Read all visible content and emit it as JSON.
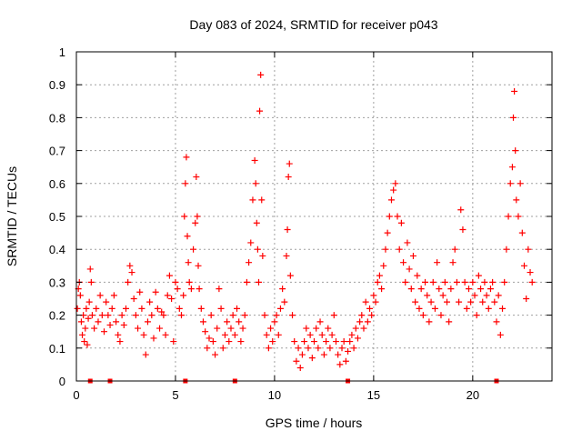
{
  "chart_data": {
    "type": "scatter",
    "title": "Day 083 of 2024, SRMTID for receiver p043",
    "xlabel": "GPS time / hours",
    "ylabel": "SRMTID / TECUs",
    "xlim": [
      0,
      24
    ],
    "ylim": [
      0,
      1
    ],
    "x_ticks": [
      0,
      5,
      10,
      15,
      20
    ],
    "x_tick_labels": [
      "0",
      "5",
      "10",
      "15",
      "20"
    ],
    "y_ticks": [
      0,
      0.1,
      0.2,
      0.3,
      0.4,
      0.5,
      0.6,
      0.7,
      0.8,
      0.9,
      1
    ],
    "y_tick_labels": [
      "0",
      "0.1",
      "0.2",
      "0.3",
      "0.4",
      "0.5",
      "0.6",
      "0.7",
      "0.8",
      "0.9",
      "1"
    ],
    "grid": true,
    "marker": "+",
    "colors": {
      "series": "#ff0000",
      "grid": "#a0a0a0",
      "axis": "#000000"
    },
    "series": [
      {
        "name": "SRMTID",
        "points": [
          [
            0.05,
            0.22
          ],
          [
            0.1,
            0.28
          ],
          [
            0.15,
            0.3
          ],
          [
            0.2,
            0.26
          ],
          [
            0.25,
            0.18
          ],
          [
            0.3,
            0.14
          ],
          [
            0.35,
            0.2
          ],
          [
            0.4,
            0.12
          ],
          [
            0.45,
            0.16
          ],
          [
            0.5,
            0.22
          ],
          [
            0.55,
            0.11
          ],
          [
            0.6,
            0.19
          ],
          [
            0.65,
            0.24
          ],
          [
            0.7,
            0.34
          ],
          [
            0.75,
            0.3
          ],
          [
            0.8,
            0.2
          ],
          [
            0.9,
            0.16
          ],
          [
            1.0,
            0.22
          ],
          [
            1.1,
            0.18
          ],
          [
            1.2,
            0.26
          ],
          [
            1.3,
            0.2
          ],
          [
            1.4,
            0.15
          ],
          [
            1.5,
            0.24
          ],
          [
            1.6,
            0.2
          ],
          [
            1.7,
            0.17
          ],
          [
            1.8,
            0.22
          ],
          [
            1.9,
            0.26
          ],
          [
            2.0,
            0.18
          ],
          [
            2.1,
            0.14
          ],
          [
            2.2,
            0.12
          ],
          [
            2.3,
            0.2
          ],
          [
            2.4,
            0.17
          ],
          [
            2.5,
            0.22
          ],
          [
            2.6,
            0.3
          ],
          [
            2.7,
            0.35
          ],
          [
            2.8,
            0.33
          ],
          [
            2.9,
            0.25
          ],
          [
            3.0,
            0.2
          ],
          [
            3.1,
            0.16
          ],
          [
            3.2,
            0.27
          ],
          [
            3.3,
            0.22
          ],
          [
            3.4,
            0.14
          ],
          [
            3.5,
            0.08
          ],
          [
            3.6,
            0.18
          ],
          [
            3.7,
            0.24
          ],
          [
            3.8,
            0.2
          ],
          [
            3.9,
            0.13
          ],
          [
            4.0,
            0.27
          ],
          [
            4.1,
            0.22
          ],
          [
            4.2,
            0.16
          ],
          [
            4.3,
            0.21
          ],
          [
            4.4,
            0.2
          ],
          [
            4.5,
            0.14
          ],
          [
            4.6,
            0.26
          ],
          [
            4.7,
            0.32
          ],
          [
            4.8,
            0.25
          ],
          [
            4.9,
            0.12
          ],
          [
            5.0,
            0.3
          ],
          [
            5.1,
            0.28
          ],
          [
            5.2,
            0.22
          ],
          [
            5.3,
            0.2
          ],
          [
            5.4,
            0.26
          ],
          [
            5.45,
            0.5
          ],
          [
            5.5,
            0.6
          ],
          [
            5.55,
            0.68
          ],
          [
            5.6,
            0.44
          ],
          [
            5.65,
            0.36
          ],
          [
            5.7,
            0.3
          ],
          [
            5.8,
            0.28
          ],
          [
            5.9,
            0.4
          ],
          [
            6.0,
            0.48
          ],
          [
            6.05,
            0.62
          ],
          [
            6.1,
            0.5
          ],
          [
            6.15,
            0.35
          ],
          [
            6.2,
            0.28
          ],
          [
            6.3,
            0.22
          ],
          [
            6.4,
            0.18
          ],
          [
            6.5,
            0.15
          ],
          [
            6.6,
            0.1
          ],
          [
            6.7,
            0.13
          ],
          [
            6.8,
            0.2
          ],
          [
            6.9,
            0.12
          ],
          [
            7.0,
            0.08
          ],
          [
            7.1,
            0.16
          ],
          [
            7.2,
            0.28
          ],
          [
            7.3,
            0.22
          ],
          [
            7.4,
            0.1
          ],
          [
            7.5,
            0.14
          ],
          [
            7.6,
            0.18
          ],
          [
            7.7,
            0.12
          ],
          [
            7.8,
            0.16
          ],
          [
            7.9,
            0.2
          ],
          [
            8.0,
            0.14
          ],
          [
            8.1,
            0.22
          ],
          [
            8.2,
            0.18
          ],
          [
            8.3,
            0.12
          ],
          [
            8.4,
            0.16
          ],
          [
            8.5,
            0.2
          ],
          [
            8.6,
            0.3
          ],
          [
            8.7,
            0.36
          ],
          [
            8.8,
            0.42
          ],
          [
            8.9,
            0.55
          ],
          [
            9.0,
            0.67
          ],
          [
            9.05,
            0.6
          ],
          [
            9.1,
            0.48
          ],
          [
            9.15,
            0.4
          ],
          [
            9.2,
            0.3
          ],
          [
            9.25,
            0.82
          ],
          [
            9.3,
            0.93
          ],
          [
            9.35,
            0.55
          ],
          [
            9.4,
            0.38
          ],
          [
            9.5,
            0.2
          ],
          [
            9.6,
            0.14
          ],
          [
            9.7,
            0.1
          ],
          [
            9.8,
            0.16
          ],
          [
            9.9,
            0.12
          ],
          [
            10.0,
            0.18
          ],
          [
            10.1,
            0.2
          ],
          [
            10.2,
            0.14
          ],
          [
            10.3,
            0.22
          ],
          [
            10.4,
            0.28
          ],
          [
            10.5,
            0.24
          ],
          [
            10.6,
            0.38
          ],
          [
            10.65,
            0.46
          ],
          [
            10.7,
            0.62
          ],
          [
            10.75,
            0.66
          ],
          [
            10.8,
            0.32
          ],
          [
            10.9,
            0.2
          ],
          [
            11.0,
            0.12
          ],
          [
            11.1,
            0.06
          ],
          [
            11.2,
            0.1
          ],
          [
            11.3,
            0.04
          ],
          [
            11.4,
            0.08
          ],
          [
            11.5,
            0.12
          ],
          [
            11.6,
            0.16
          ],
          [
            11.7,
            0.1
          ],
          [
            11.8,
            0.14
          ],
          [
            11.9,
            0.07
          ],
          [
            12.0,
            0.12
          ],
          [
            12.1,
            0.16
          ],
          [
            12.2,
            0.1
          ],
          [
            12.3,
            0.18
          ],
          [
            12.4,
            0.14
          ],
          [
            12.5,
            0.08
          ],
          [
            12.6,
            0.12
          ],
          [
            12.7,
            0.16
          ],
          [
            12.8,
            0.1
          ],
          [
            12.9,
            0.14
          ],
          [
            13.0,
            0.2
          ],
          [
            13.1,
            0.12
          ],
          [
            13.2,
            0.08
          ],
          [
            13.3,
            0.05
          ],
          [
            13.4,
            0.1
          ],
          [
            13.5,
            0.12
          ],
          [
            13.6,
            0.06
          ],
          [
            13.7,
            0.09
          ],
          [
            13.8,
            0.12
          ],
          [
            13.9,
            0.14
          ],
          [
            14.0,
            0.1
          ],
          [
            14.1,
            0.16
          ],
          [
            14.2,
            0.13
          ],
          [
            14.3,
            0.18
          ],
          [
            14.4,
            0.2
          ],
          [
            14.5,
            0.16
          ],
          [
            14.6,
            0.24
          ],
          [
            14.7,
            0.18
          ],
          [
            14.8,
            0.22
          ],
          [
            14.9,
            0.2
          ],
          [
            15.0,
            0.26
          ],
          [
            15.1,
            0.24
          ],
          [
            15.2,
            0.3
          ],
          [
            15.3,
            0.32
          ],
          [
            15.4,
            0.28
          ],
          [
            15.5,
            0.35
          ],
          [
            15.6,
            0.4
          ],
          [
            15.7,
            0.45
          ],
          [
            15.8,
            0.5
          ],
          [
            15.9,
            0.55
          ],
          [
            16.0,
            0.58
          ],
          [
            16.1,
            0.6
          ],
          [
            16.2,
            0.5
          ],
          [
            16.3,
            0.4
          ],
          [
            16.4,
            0.48
          ],
          [
            16.5,
            0.36
          ],
          [
            16.6,
            0.3
          ],
          [
            16.7,
            0.42
          ],
          [
            16.8,
            0.34
          ],
          [
            16.9,
            0.28
          ],
          [
            17.0,
            0.38
          ],
          [
            17.1,
            0.24
          ],
          [
            17.2,
            0.32
          ],
          [
            17.3,
            0.22
          ],
          [
            17.4,
            0.28
          ],
          [
            17.5,
            0.2
          ],
          [
            17.6,
            0.3
          ],
          [
            17.7,
            0.26
          ],
          [
            17.8,
            0.18
          ],
          [
            17.9,
            0.24
          ],
          [
            18.0,
            0.3
          ],
          [
            18.1,
            0.22
          ],
          [
            18.2,
            0.36
          ],
          [
            18.3,
            0.28
          ],
          [
            18.4,
            0.2
          ],
          [
            18.5,
            0.26
          ],
          [
            18.6,
            0.3
          ],
          [
            18.7,
            0.24
          ],
          [
            18.8,
            0.18
          ],
          [
            18.9,
            0.28
          ],
          [
            19.0,
            0.36
          ],
          [
            19.1,
            0.4
          ],
          [
            19.2,
            0.3
          ],
          [
            19.3,
            0.24
          ],
          [
            19.4,
            0.52
          ],
          [
            19.5,
            0.46
          ],
          [
            19.6,
            0.3
          ],
          [
            19.7,
            0.22
          ],
          [
            19.8,
            0.28
          ],
          [
            19.9,
            0.24
          ],
          [
            20.0,
            0.3
          ],
          [
            20.1,
            0.26
          ],
          [
            20.2,
            0.2
          ],
          [
            20.3,
            0.32
          ],
          [
            20.4,
            0.28
          ],
          [
            20.5,
            0.24
          ],
          [
            20.6,
            0.3
          ],
          [
            20.7,
            0.26
          ],
          [
            20.8,
            0.22
          ],
          [
            20.9,
            0.28
          ],
          [
            21.0,
            0.3
          ],
          [
            21.1,
            0.24
          ],
          [
            21.2,
            0.18
          ],
          [
            21.3,
            0.26
          ],
          [
            21.4,
            0.14
          ],
          [
            21.5,
            0.22
          ],
          [
            21.6,
            0.3
          ],
          [
            21.7,
            0.4
          ],
          [
            21.8,
            0.5
          ],
          [
            21.9,
            0.6
          ],
          [
            22.0,
            0.65
          ],
          [
            22.05,
            0.8
          ],
          [
            22.1,
            0.88
          ],
          [
            22.15,
            0.7
          ],
          [
            22.2,
            0.55
          ],
          [
            22.3,
            0.5
          ],
          [
            22.4,
            0.6
          ],
          [
            22.5,
            0.45
          ],
          [
            22.6,
            0.35
          ],
          [
            22.7,
            0.25
          ],
          [
            22.8,
            0.4
          ],
          [
            22.9,
            0.33
          ],
          [
            23.0,
            0.3
          ]
        ]
      }
    ],
    "axis_markers": [
      0.7,
      1.7,
      5.5,
      8.0,
      13.7,
      21.2
    ]
  }
}
